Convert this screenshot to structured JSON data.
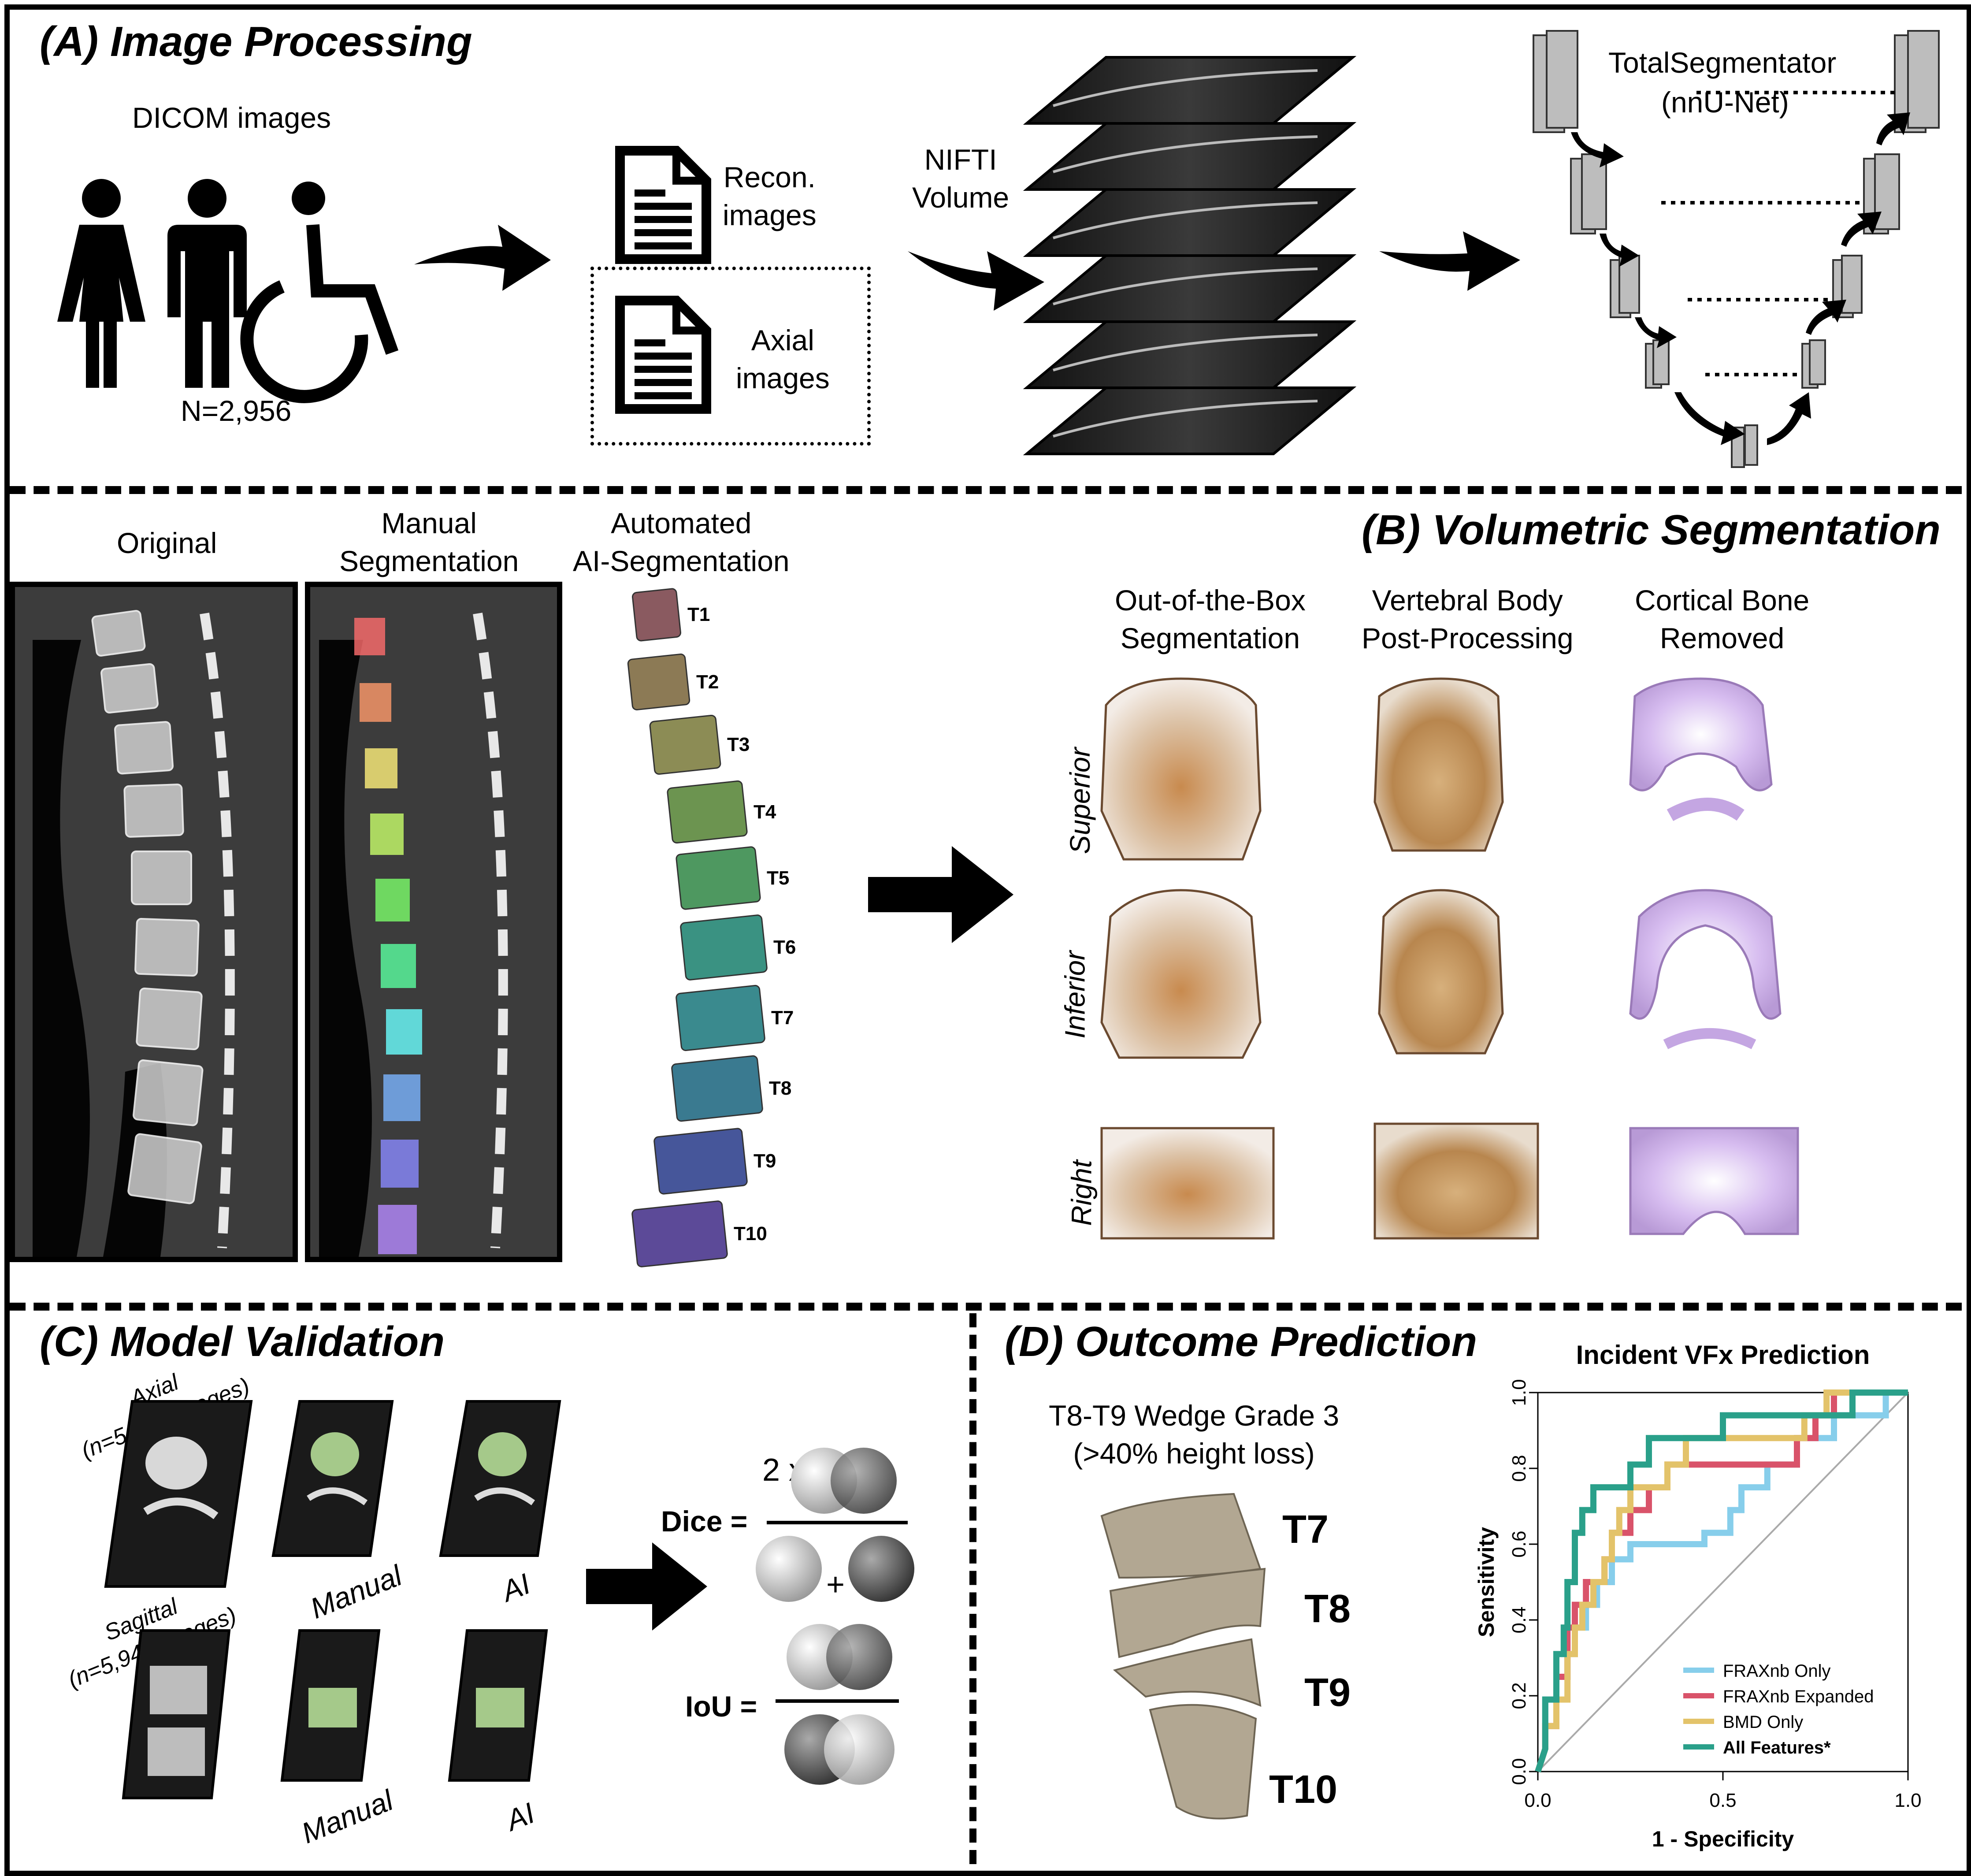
{
  "panel_a": {
    "title": "(A) Image Processing",
    "dicom_label": "DICOM images",
    "n_label": "N=2,956",
    "recon_label": "Recon.\nimages",
    "axial_label": "Axial\nimages",
    "nifti_label": "NIFTI\nVolume",
    "model_name": "TotalSegmentator",
    "model_sub": "(nnU-Net)"
  },
  "panel_b": {
    "title": "(B) Volumetric Segmentation",
    "col_original": "Original",
    "col_manual": "Manual\nSegmentation",
    "col_auto": "Automated\nAI-Segmentation",
    "vertebrae": [
      "T1",
      "T2",
      "T3",
      "T4",
      "T5",
      "T6",
      "T7",
      "T8",
      "T9",
      "T10"
    ],
    "vertebra_colors": [
      "#8a5a60",
      "#8c7a55",
      "#8c8c55",
      "#6c9450",
      "#4e9860",
      "#3a9282",
      "#3a8a8e",
      "#3a7a90",
      "#46569a",
      "#5c4a98"
    ],
    "manual_colors": [
      "#ff6d6d",
      "#ff9a6a",
      "#fff07a",
      "#c8ff6a",
      "#7cff6a",
      "#5affa0",
      "#6affff",
      "#7ab4ff",
      "#8a8aff",
      "#b58aff"
    ],
    "col_box": "Out-of-the-Box\nSegmentation",
    "col_post": "Vertebral Body\nPost-Processing",
    "col_cortical": "Cortical Bone\nRemoved",
    "row_superior": "Superior",
    "row_inferior": "Inferior",
    "row_right": "Right"
  },
  "panel_c": {
    "title": "(C) Model Validation",
    "axial_label": "Axial\n(n=5,940 images)",
    "sagittal_label": "Sagittal\n(n=5,940 images)",
    "manual_label": "Manual",
    "ai_label": "AI",
    "dice_label": "Dice =",
    "iou_label": "IoU =",
    "two_x": "2 x",
    "plus": "+"
  },
  "panel_d": {
    "title": "(D) Outcome Prediction",
    "case_label": "T8-T9 Wedge Grade 3\n(>40% height loss)",
    "levels": [
      "T7",
      "T8",
      "T9",
      "T10"
    ]
  },
  "chart_data": {
    "type": "line",
    "title": "Incident VFx Prediction",
    "xlabel": "1 - Specificity",
    "ylabel": "Sensitivity",
    "xlim": [
      0,
      1
    ],
    "ylim": [
      0,
      1
    ],
    "x_ticks": [
      "0.0",
      "0.5",
      "1.0"
    ],
    "y_ticks": [
      "0.0",
      "0.2",
      "0.4",
      "0.6",
      "0.8",
      "1.0"
    ],
    "legend_position": "bottom-right",
    "diagonal": true,
    "series": [
      {
        "name": "FRAXnb Only",
        "color": "#87ceeb",
        "points": [
          [
            0,
            0
          ],
          [
            0.02,
            0.06
          ],
          [
            0.02,
            0.19
          ],
          [
            0.05,
            0.19
          ],
          [
            0.05,
            0.25
          ],
          [
            0.08,
            0.25
          ],
          [
            0.08,
            0.31
          ],
          [
            0.1,
            0.31
          ],
          [
            0.1,
            0.38
          ],
          [
            0.13,
            0.38
          ],
          [
            0.13,
            0.44
          ],
          [
            0.16,
            0.44
          ],
          [
            0.16,
            0.5
          ],
          [
            0.2,
            0.5
          ],
          [
            0.2,
            0.56
          ],
          [
            0.25,
            0.56
          ],
          [
            0.25,
            0.6
          ],
          [
            0.45,
            0.6
          ],
          [
            0.45,
            0.63
          ],
          [
            0.52,
            0.63
          ],
          [
            0.52,
            0.69
          ],
          [
            0.55,
            0.69
          ],
          [
            0.55,
            0.75
          ],
          [
            0.62,
            0.75
          ],
          [
            0.62,
            0.81
          ],
          [
            0.7,
            0.81
          ],
          [
            0.7,
            0.88
          ],
          [
            0.8,
            0.88
          ],
          [
            0.8,
            0.94
          ],
          [
            0.94,
            0.94
          ],
          [
            0.94,
            1.0
          ],
          [
            1.0,
            1.0
          ]
        ]
      },
      {
        "name": "FRAXnb Expanded",
        "color": "#d9536a",
        "points": [
          [
            0,
            0
          ],
          [
            0.02,
            0.06
          ],
          [
            0.02,
            0.12
          ],
          [
            0.05,
            0.12
          ],
          [
            0.05,
            0.25
          ],
          [
            0.08,
            0.25
          ],
          [
            0.08,
            0.38
          ],
          [
            0.1,
            0.38
          ],
          [
            0.1,
            0.44
          ],
          [
            0.13,
            0.44
          ],
          [
            0.13,
            0.5
          ],
          [
            0.18,
            0.5
          ],
          [
            0.18,
            0.56
          ],
          [
            0.2,
            0.56
          ],
          [
            0.2,
            0.63
          ],
          [
            0.25,
            0.63
          ],
          [
            0.25,
            0.69
          ],
          [
            0.3,
            0.69
          ],
          [
            0.3,
            0.75
          ],
          [
            0.35,
            0.75
          ],
          [
            0.35,
            0.81
          ],
          [
            0.7,
            0.81
          ],
          [
            0.7,
            0.88
          ],
          [
            0.75,
            0.88
          ],
          [
            0.75,
            0.94
          ],
          [
            0.8,
            0.94
          ],
          [
            0.8,
            1.0
          ],
          [
            1.0,
            1.0
          ]
        ]
      },
      {
        "name": "BMD Only",
        "color": "#e3c36a",
        "points": [
          [
            0,
            0
          ],
          [
            0.02,
            0.06
          ],
          [
            0.02,
            0.12
          ],
          [
            0.05,
            0.12
          ],
          [
            0.05,
            0.19
          ],
          [
            0.08,
            0.19
          ],
          [
            0.08,
            0.31
          ],
          [
            0.1,
            0.31
          ],
          [
            0.1,
            0.38
          ],
          [
            0.12,
            0.38
          ],
          [
            0.12,
            0.44
          ],
          [
            0.15,
            0.44
          ],
          [
            0.15,
            0.5
          ],
          [
            0.18,
            0.5
          ],
          [
            0.18,
            0.56
          ],
          [
            0.2,
            0.56
          ],
          [
            0.2,
            0.63
          ],
          [
            0.22,
            0.63
          ],
          [
            0.22,
            0.69
          ],
          [
            0.25,
            0.69
          ],
          [
            0.25,
            0.75
          ],
          [
            0.35,
            0.75
          ],
          [
            0.35,
            0.81
          ],
          [
            0.4,
            0.81
          ],
          [
            0.4,
            0.88
          ],
          [
            0.72,
            0.88
          ],
          [
            0.72,
            0.94
          ],
          [
            0.78,
            0.94
          ],
          [
            0.78,
            1.0
          ],
          [
            1.0,
            1.0
          ]
        ]
      },
      {
        "name": "All Features*",
        "color": "#2aa08a",
        "points": [
          [
            0,
            0
          ],
          [
            0.02,
            0.06
          ],
          [
            0.02,
            0.19
          ],
          [
            0.05,
            0.19
          ],
          [
            0.05,
            0.31
          ],
          [
            0.07,
            0.31
          ],
          [
            0.07,
            0.38
          ],
          [
            0.08,
            0.38
          ],
          [
            0.08,
            0.5
          ],
          [
            0.1,
            0.5
          ],
          [
            0.1,
            0.63
          ],
          [
            0.12,
            0.63
          ],
          [
            0.12,
            0.69
          ],
          [
            0.15,
            0.69
          ],
          [
            0.15,
            0.75
          ],
          [
            0.25,
            0.75
          ],
          [
            0.25,
            0.81
          ],
          [
            0.3,
            0.81
          ],
          [
            0.3,
            0.88
          ],
          [
            0.5,
            0.88
          ],
          [
            0.5,
            0.94
          ],
          [
            0.85,
            0.94
          ],
          [
            0.85,
            1.0
          ],
          [
            1.0,
            1.0
          ]
        ]
      }
    ]
  },
  "colors": {
    "frame": "#000000",
    "bone_tan": "#c9b59a",
    "bone_brown": "#a86a34",
    "cortical_purple": "#c8a8e0",
    "model_block": "#a8a8a8"
  }
}
